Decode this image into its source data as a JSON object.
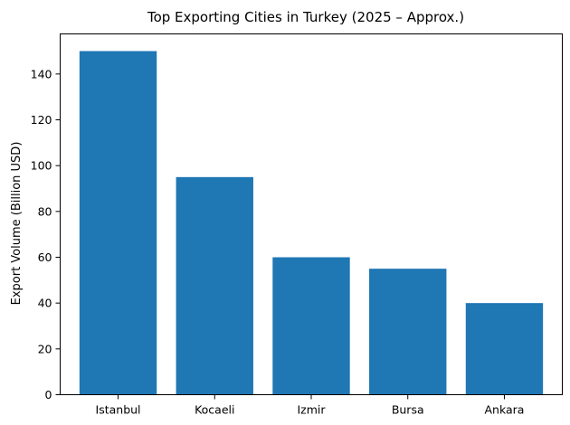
{
  "chart_data": {
    "type": "bar",
    "title": "Top Exporting Cities in Turkey (2025 – Approx.)",
    "xlabel": "",
    "ylabel": "Export Volume (Billion USD)",
    "categories": [
      "Istanbul",
      "Kocaeli",
      "Izmir",
      "Bursa",
      "Ankara"
    ],
    "values": [
      150,
      95,
      60,
      55,
      40
    ],
    "ylim": [
      0,
      157.5
    ],
    "yticks": [
      0,
      20,
      40,
      60,
      80,
      100,
      120,
      140
    ],
    "bar_color": "#1f77b4",
    "grid": false,
    "legend": "none"
  }
}
